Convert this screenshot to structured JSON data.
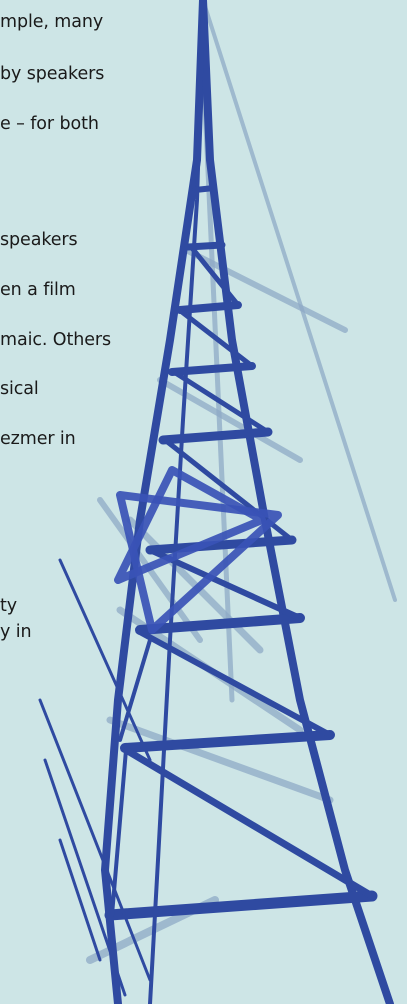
{
  "text_lines": [
    "mple, many",
    "by speakers",
    "e – for both",
    "speakers",
    "en a film",
    "maic. Others",
    "sical",
    "ezmer in",
    "ty",
    "y in"
  ],
  "colors": {
    "background": "#cde5e6",
    "tower_blue": "#2e4a9e",
    "tower_shadow": "#8aa9c9",
    "star_blue": "#3b52b8"
  },
  "illustration": {
    "tower_icon": "radio-tower-icon",
    "star_icon": "star-of-david-icon"
  }
}
